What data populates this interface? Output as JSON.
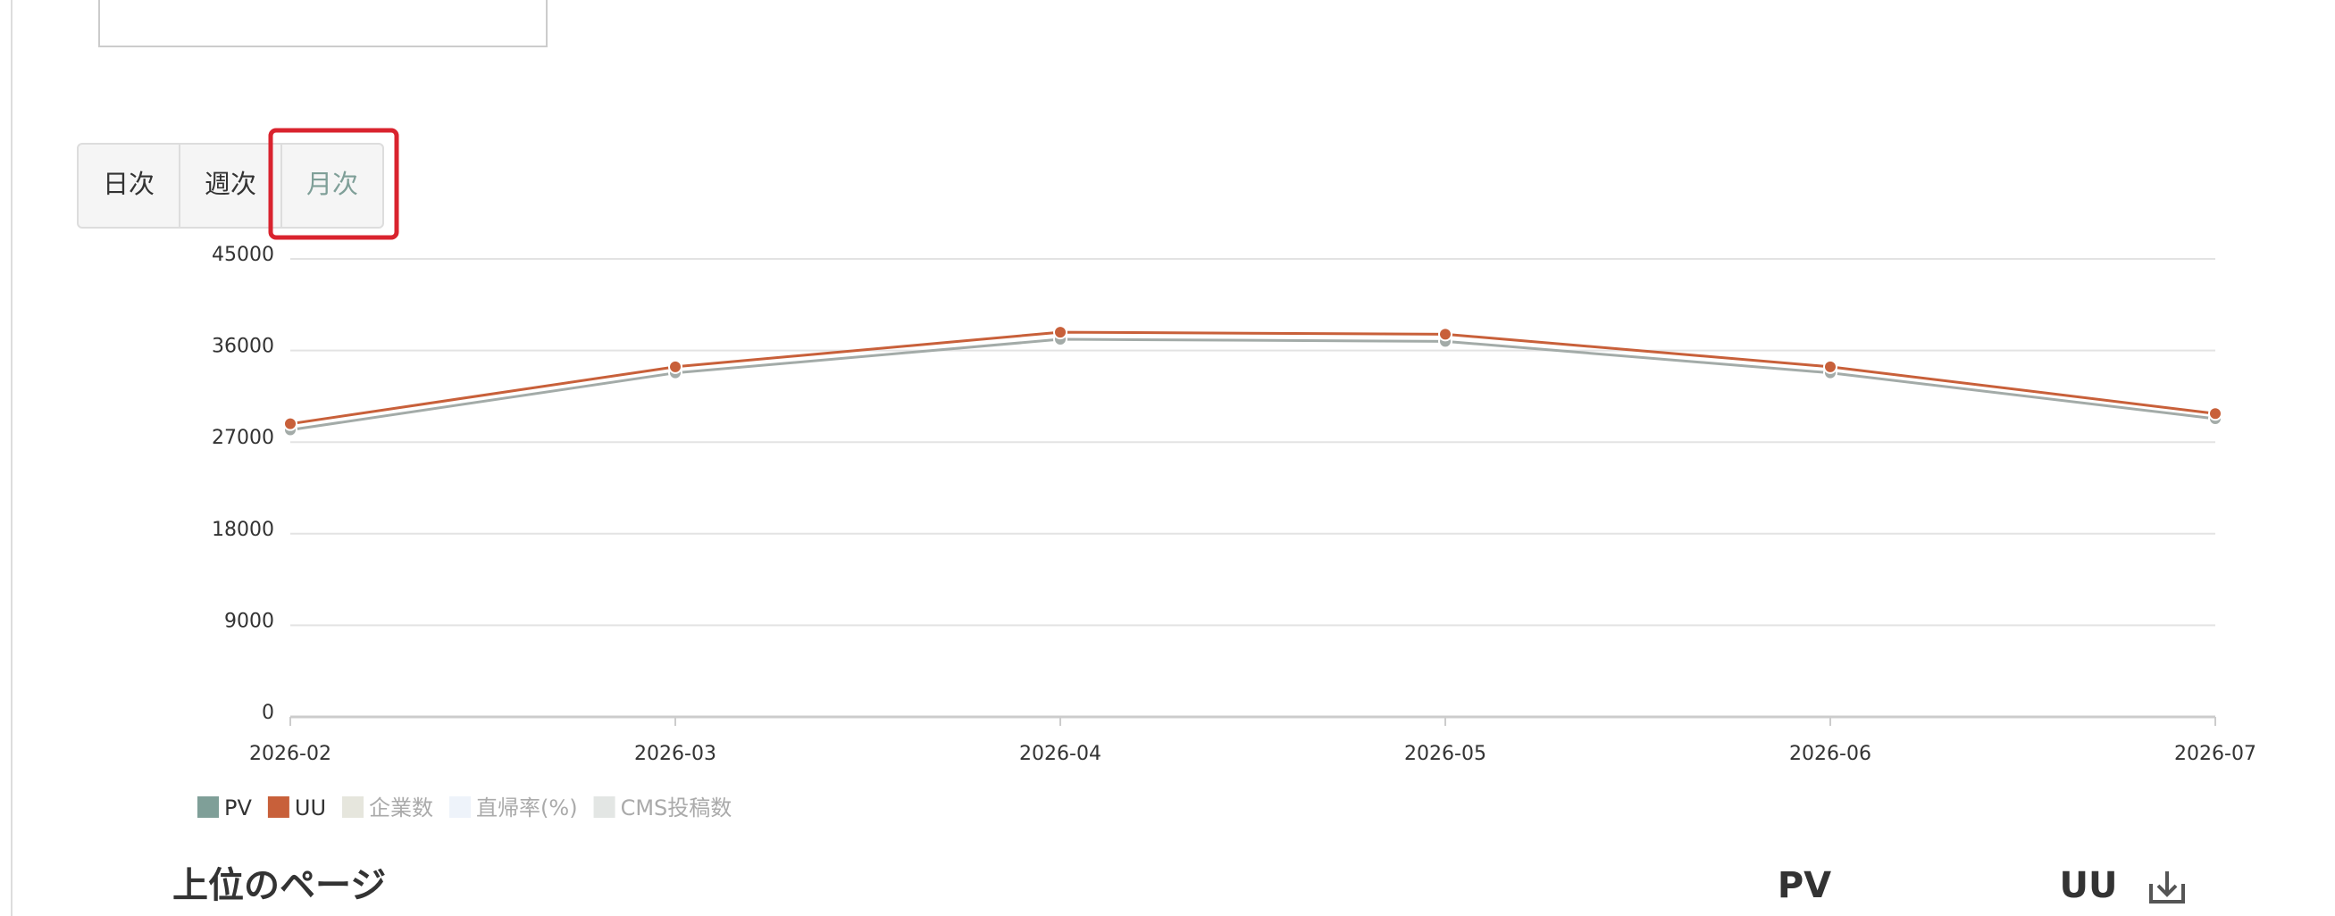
{
  "tabs": [
    "日次",
    "週次",
    "月次"
  ],
  "chart_data": {
    "type": "line",
    "categories": [
      "2026-02",
      "2026-03",
      "2026-04",
      "2026-05",
      "2026-06",
      "2026-07"
    ],
    "series": [
      {
        "name": "PV",
        "color": "#a3aba8",
        "legend_color": "#7f9f98",
        "values": [
          28200,
          33800,
          37100,
          36900,
          33800,
          29300
        ]
      },
      {
        "name": "UU",
        "color": "#c8603a",
        "legend_color": "#c8603a",
        "values": [
          28800,
          34400,
          37800,
          37600,
          34400,
          29800
        ]
      }
    ],
    "hidden_series": [
      {
        "name": "企業数",
        "color": "#e6e6dd"
      },
      {
        "name": "直帰率(%)",
        "color": "#eef3fa"
      },
      {
        "name": "CMS投稿数",
        "color": "#e3e6e4"
      }
    ],
    "ylim": [
      0,
      45000
    ],
    "yticks": [
      0,
      9000,
      18000,
      27000,
      36000,
      45000
    ],
    "grid": true
  },
  "table_header": {
    "title": "上位のページ",
    "columns": [
      "PV",
      "UU"
    ]
  }
}
